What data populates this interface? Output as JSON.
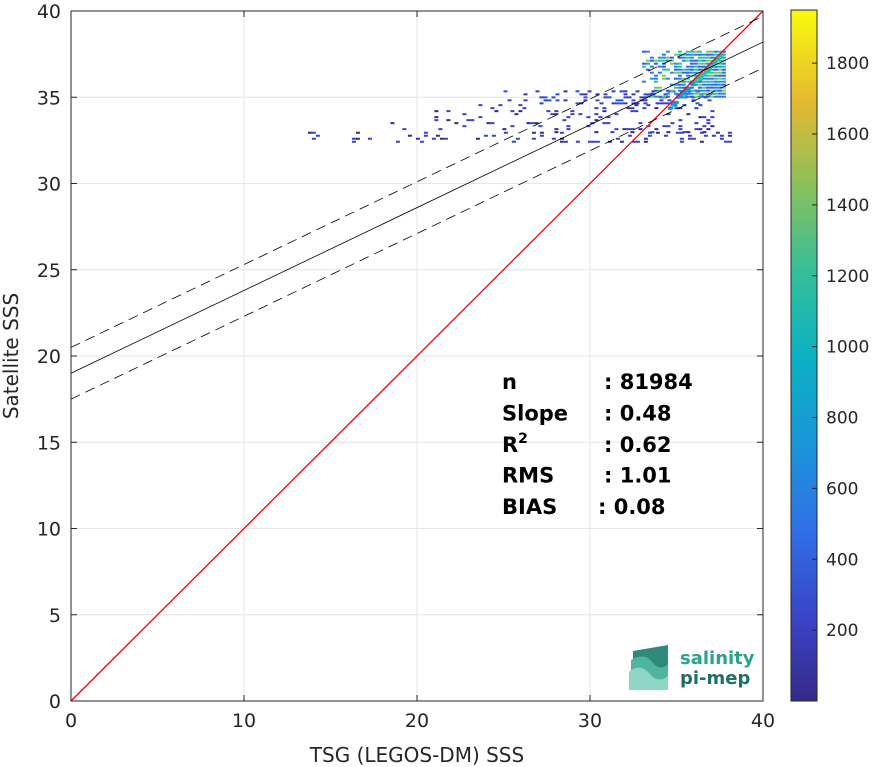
{
  "chart_data": {
    "type": "scatter",
    "xlabel": "TSG (LEGOS-DM) SSS",
    "ylabel": "Satellite SSS",
    "xlim": [
      0,
      40
    ],
    "ylim": [
      0,
      40
    ],
    "xticks": [
      0,
      10,
      20,
      30,
      40
    ],
    "yticks": [
      0,
      5,
      10,
      15,
      20,
      25,
      30,
      35,
      40
    ],
    "grid": true,
    "colorbar": {
      "range": [
        0,
        1950
      ],
      "ticks": [
        200,
        400,
        600,
        800,
        1000,
        1200,
        1400,
        1600,
        1800
      ],
      "colormap": "parula"
    },
    "reference_line": {
      "slope": 1,
      "intercept": 0,
      "color": "#ff0000"
    },
    "fit_line": {
      "slope": 0.48,
      "intercept": 19.0,
      "band_offset": 1.5,
      "color": "#000000"
    },
    "density_clusters": [
      {
        "x_range": [
          13,
          38
        ],
        "y_range": [
          32.4,
          33.0
        ],
        "density": "low"
      },
      {
        "x_range": [
          18,
          37
        ],
        "y_range": [
          33.0,
          34.6
        ],
        "density": "low"
      },
      {
        "x_range": [
          25,
          37
        ],
        "y_range": [
          34.6,
          35.4
        ],
        "density": "medium"
      },
      {
        "x_range": [
          33,
          37.8
        ],
        "y_range": [
          35.0,
          37.7
        ],
        "density": "high"
      }
    ],
    "stats": [
      {
        "label": "n",
        "value": ": 81984"
      },
      {
        "label": "Slope",
        "value": ": 0.48"
      },
      {
        "label": "R",
        "sup": "2",
        "value": ": 0.62"
      },
      {
        "label": "RMS",
        "value": ": 1.01"
      },
      {
        "label": "BIAS",
        "value": ": 0.08"
      }
    ]
  },
  "logo": {
    "line1": "salinity",
    "line2": "pi-mep"
  }
}
